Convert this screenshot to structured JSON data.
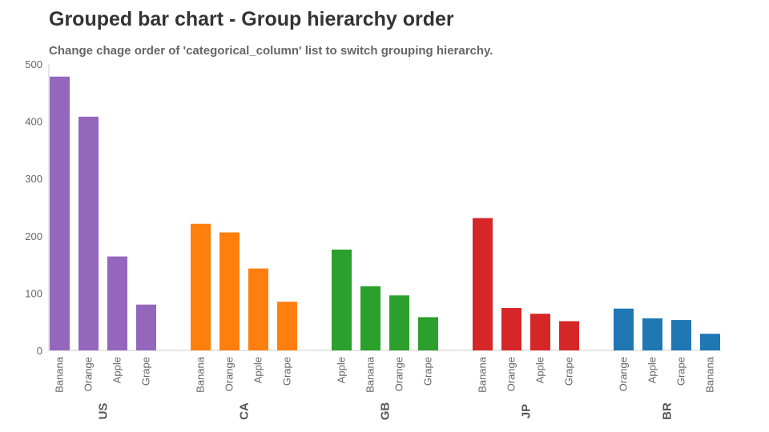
{
  "header": {
    "title": "Grouped bar chart - Group hierarchy order",
    "subtitle": "Change chage order of 'categorical_column' list to switch grouping hierarchy."
  },
  "chart_data": {
    "type": "bar",
    "title": "Grouped bar chart - Group hierarchy order",
    "subtitle": "Change chage order of 'categorical_column' list to switch grouping hierarchy.",
    "xlabel": "",
    "ylabel": "",
    "ylim": [
      0,
      500
    ],
    "yticks": [
      0,
      100,
      200,
      300,
      400,
      500
    ],
    "grid": false,
    "legend": "none",
    "groups": [
      {
        "name": "US",
        "color": "#9467bd",
        "bars": [
          {
            "label": "Banana",
            "value": 478
          },
          {
            "label": "Orange",
            "value": 408
          },
          {
            "label": "Apple",
            "value": 164
          },
          {
            "label": "Grape",
            "value": 80
          }
        ]
      },
      {
        "name": "CA",
        "color": "#ff7f0e",
        "bars": [
          {
            "label": "Banana",
            "value": 221
          },
          {
            "label": "Orange",
            "value": 206
          },
          {
            "label": "Apple",
            "value": 143
          },
          {
            "label": "Grape",
            "value": 85
          }
        ]
      },
      {
        "name": "GB",
        "color": "#2ca02c",
        "bars": [
          {
            "label": "Apple",
            "value": 176
          },
          {
            "label": "Banana",
            "value": 112
          },
          {
            "label": "Orange",
            "value": 96
          },
          {
            "label": "Grape",
            "value": 58
          }
        ]
      },
      {
        "name": "JP",
        "color": "#d62728",
        "bars": [
          {
            "label": "Banana",
            "value": 231
          },
          {
            "label": "Orange",
            "value": 74
          },
          {
            "label": "Apple",
            "value": 64
          },
          {
            "label": "Grape",
            "value": 51
          }
        ]
      },
      {
        "name": "BR",
        "color": "#1f77b4",
        "bars": [
          {
            "label": "Orange",
            "value": 73
          },
          {
            "label": "Apple",
            "value": 56
          },
          {
            "label": "Grape",
            "value": 53
          },
          {
            "label": "Banana",
            "value": 29
          }
        ]
      }
    ]
  }
}
